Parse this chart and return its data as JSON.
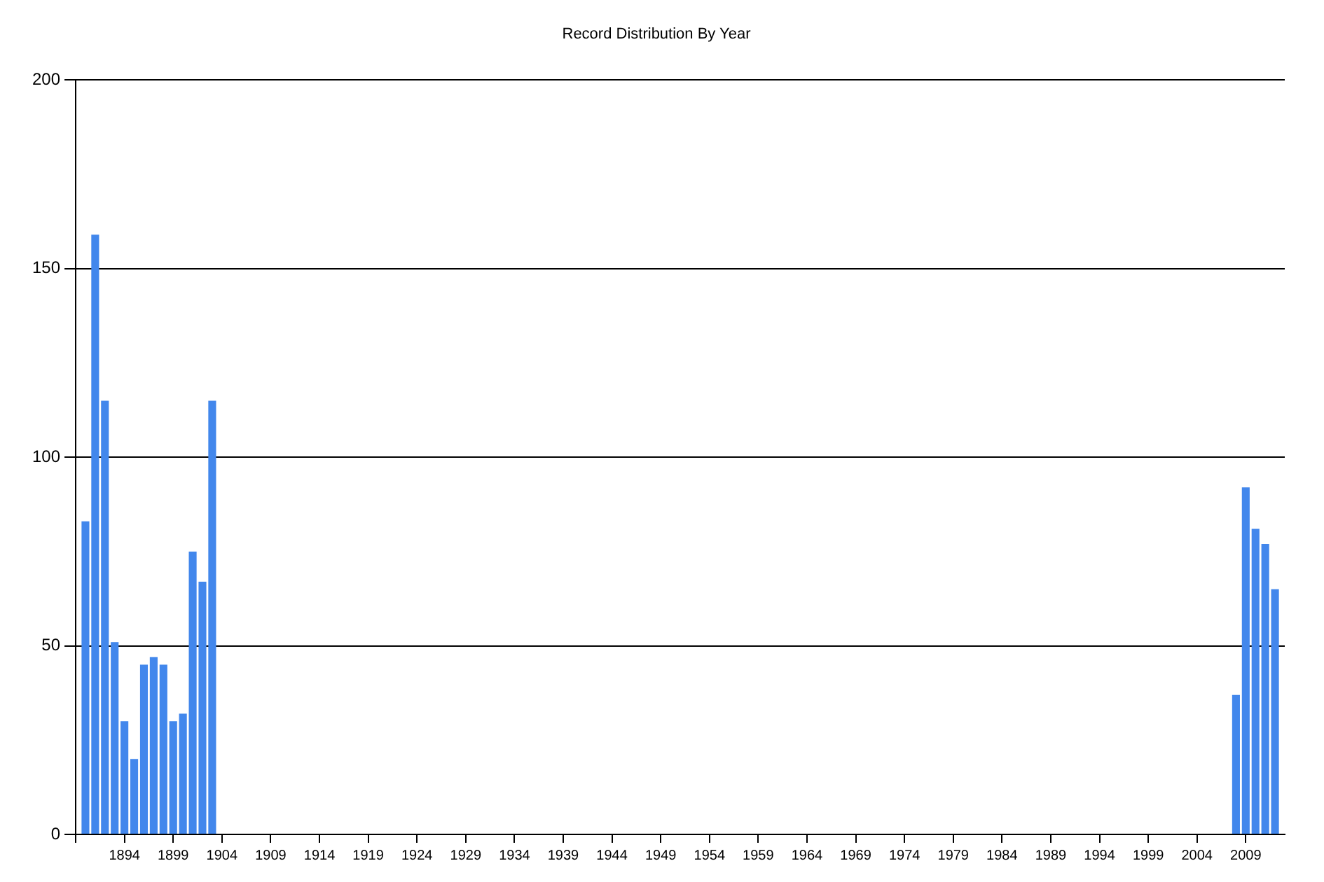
{
  "chart_data": {
    "type": "bar",
    "title": "Record Distribution By Year",
    "x": [
      1890,
      1891,
      1892,
      1893,
      1894,
      1895,
      1896,
      1897,
      1898,
      1899,
      1900,
      1901,
      1902,
      1903,
      2008,
      2009,
      2010,
      2011,
      2012
    ],
    "values": [
      83,
      159,
      115,
      51,
      30,
      20,
      45,
      47,
      45,
      30,
      32,
      75,
      67,
      115,
      37,
      92,
      81,
      77,
      65
    ],
    "color": "#4287ec",
    "xlim": [
      1889,
      2013
    ],
    "xticks": [
      {
        "value": 1889,
        "label": null
      },
      1894,
      1899,
      1904,
      1909,
      1914,
      1919,
      1924,
      1929,
      1934,
      1939,
      1944,
      1949,
      1954,
      1959,
      1964,
      1969,
      1974,
      1979,
      1984,
      1989,
      1994,
      1999,
      2004,
      2009
    ],
    "ylim": [
      0,
      200
    ],
    "yticks": [
      0,
      50,
      100,
      150,
      200
    ],
    "grid": "y",
    "legend": false
  }
}
